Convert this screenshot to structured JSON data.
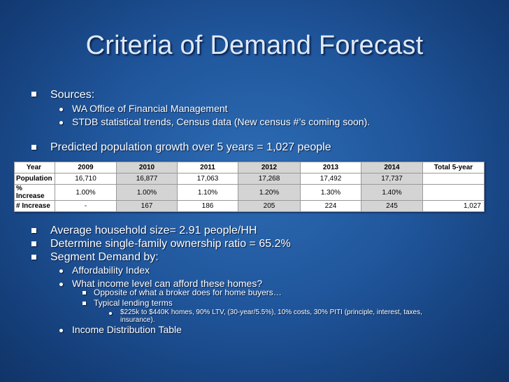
{
  "slide": {
    "title": "Criteria of Demand Forecast",
    "sources": {
      "heading": "Sources:",
      "items": [
        "WA Office of Financial Management",
        "STDB statistical trends, Census data (New census #’s coming soon)."
      ]
    },
    "growth": "Predicted population growth over 5 years = 1,027 people",
    "table": {
      "columns": [
        "Year",
        "2009",
        "2010",
        "2011",
        "2012",
        "2013",
        "2014",
        "Total 5-year"
      ],
      "rows": [
        {
          "label": "Population",
          "values": [
            "16,710",
            "16,877",
            "17,063",
            "17,268",
            "17,492",
            "17,737",
            ""
          ]
        },
        {
          "label": "% Increase",
          "values": [
            "1.00%",
            "1.00%",
            "1.10%",
            "1.20%",
            "1.30%",
            "1.40%",
            ""
          ]
        },
        {
          "label": "# Increase",
          "values": [
            "-",
            "167",
            "186",
            "205",
            "224",
            "245",
            "1,027"
          ]
        }
      ]
    },
    "bullets": {
      "household": "Average household size= 2.91 people/HH",
      "ownership": "Determine single-family ownership ratio = 65.2%",
      "segment": "Segment Demand by:",
      "affordability": "Affordability Index",
      "income_q": "What income level can afford these homes?",
      "opposite": "Opposite of what a broker does for home buyers…",
      "typical": "Typical lending terms",
      "terms_line1": "$225k to $440K homes, 90% LTV, (30-year/5.5%), 10% costs, 30% PITI (principle, interest, taxes,",
      "terms_line2": "insurance).",
      "income_table": "Income Distribution Table"
    }
  }
}
